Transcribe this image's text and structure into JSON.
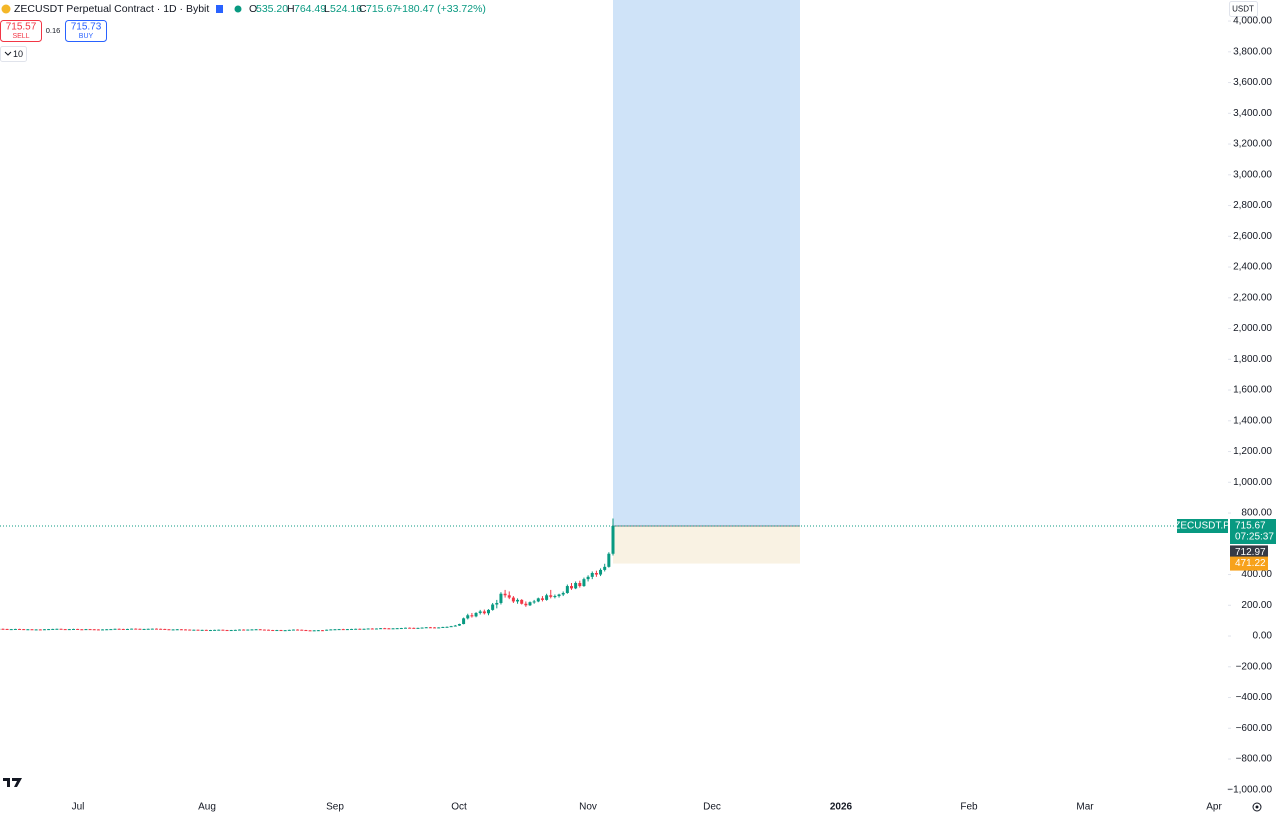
{
  "header": {
    "symbol": "ZECUSDT Perpetual Contract · 1D · Bybit",
    "o_label": "O",
    "o": "535.20",
    "h_label": "H",
    "h": "764.49",
    "l_label": "L",
    "l": "524.16",
    "c_label": "C",
    "c": "715.67",
    "change": "+180.47 (+33.72%)"
  },
  "trade": {
    "sell_price": "715.57",
    "sell": "SELL",
    "spread": "0.16",
    "buy_price": "715.73",
    "buy": "BUY"
  },
  "indicators": "10",
  "currency": "USDT",
  "chart_data": {
    "type": "candlestick",
    "ylim": [
      -1034,
      4137
    ],
    "yticks": [
      {
        "value": -1000,
        "label": "−1,000.00"
      },
      {
        "value": -800,
        "label": "−800.00"
      },
      {
        "value": -600,
        "label": "−600.00"
      },
      {
        "value": -400,
        "label": "−400.00"
      },
      {
        "value": -200,
        "label": "−200.00"
      },
      {
        "value": 0,
        "label": "0.00"
      },
      {
        "value": 200,
        "label": "200.00"
      },
      {
        "value": 400,
        "label": "400.00"
      },
      {
        "value": 800,
        "label": "800.00"
      },
      {
        "value": 1000,
        "label": "1,000.00"
      },
      {
        "value": 1200,
        "label": "1,200.00"
      },
      {
        "value": 1400,
        "label": "1,400.00"
      },
      {
        "value": 1600,
        "label": "1,600.00"
      },
      {
        "value": 1800,
        "label": "1,800.00"
      },
      {
        "value": 2000,
        "label": "2,000.00"
      },
      {
        "value": 2200,
        "label": "2,200.00"
      },
      {
        "value": 2400,
        "label": "2,400.00"
      },
      {
        "value": 2600,
        "label": "2,600.00"
      },
      {
        "value": 2800,
        "label": "2,800.00"
      },
      {
        "value": 3000,
        "label": "3,000.00"
      },
      {
        "value": 3200,
        "label": "3,200.00"
      },
      {
        "value": 3400,
        "label": "3,400.00"
      },
      {
        "value": 3600,
        "label": "3,600.00"
      },
      {
        "value": 3800,
        "label": "3,800.00"
      },
      {
        "value": 4000,
        "label": "4,000.00"
      }
    ],
    "xlabels": [
      "Jul",
      "Aug",
      "Sep",
      "Oct",
      "Nov",
      "Dec",
      "2026",
      "Feb",
      "Mar",
      "Apr"
    ],
    "up_color": "#089981",
    "down_color": "#f23645",
    "ohlc": [
      [
        46,
        48,
        45,
        47
      ],
      [
        47,
        49,
        45,
        46
      ],
      [
        46,
        47,
        43,
        44
      ],
      [
        44,
        46,
        43,
        45
      ],
      [
        45,
        47,
        44,
        46
      ],
      [
        46,
        47,
        44,
        45
      ],
      [
        45,
        46,
        42,
        43
      ],
      [
        43,
        45,
        42,
        44
      ],
      [
        44,
        45,
        41,
        42
      ],
      [
        42,
        44,
        40,
        43
      ],
      [
        43,
        44,
        40,
        41
      ],
      [
        41,
        45,
        40,
        44
      ],
      [
        44,
        46,
        43,
        45
      ],
      [
        45,
        47,
        44,
        46
      ],
      [
        46,
        48,
        45,
        47
      ],
      [
        47,
        48,
        44,
        45
      ],
      [
        45,
        46,
        43,
        44
      ],
      [
        44,
        46,
        43,
        45
      ],
      [
        45,
        47,
        44,
        46
      ],
      [
        46,
        47,
        43,
        44
      ],
      [
        44,
        45,
        42,
        43
      ],
      [
        43,
        46,
        42,
        45
      ],
      [
        45,
        46,
        43,
        44
      ],
      [
        44,
        45,
        42,
        43
      ],
      [
        43,
        44,
        41,
        42
      ],
      [
        42,
        44,
        41,
        43
      ],
      [
        43,
        45,
        42,
        44
      ],
      [
        44,
        46,
        43,
        45
      ],
      [
        45,
        48,
        44,
        47
      ],
      [
        47,
        49,
        45,
        46
      ],
      [
        46,
        47,
        44,
        45
      ],
      [
        45,
        47,
        44,
        46
      ],
      [
        46,
        49,
        45,
        48
      ],
      [
        48,
        50,
        46,
        47
      ],
      [
        47,
        48,
        44,
        45
      ],
      [
        45,
        47,
        44,
        46
      ],
      [
        46,
        48,
        45,
        47
      ],
      [
        47,
        49,
        46,
        48
      ],
      [
        48,
        50,
        46,
        47
      ],
      [
        47,
        48,
        45,
        46
      ],
      [
        46,
        47,
        43,
        44
      ],
      [
        44,
        45,
        41,
        42
      ],
      [
        42,
        44,
        41,
        43
      ],
      [
        43,
        45,
        42,
        44
      ],
      [
        44,
        45,
        42,
        43
      ],
      [
        43,
        44,
        41,
        42
      ],
      [
        42,
        43,
        39,
        40
      ],
      [
        40,
        42,
        39,
        41
      ],
      [
        41,
        42,
        38,
        39
      ],
      [
        39,
        41,
        37,
        40
      ],
      [
        40,
        41,
        37,
        38
      ],
      [
        38,
        40,
        37,
        39
      ],
      [
        39,
        41,
        38,
        40
      ],
      [
        40,
        42,
        39,
        41
      ],
      [
        41,
        42,
        38,
        39
      ],
      [
        39,
        40,
        37,
        38
      ],
      [
        38,
        40,
        37,
        39
      ],
      [
        39,
        41,
        38,
        40
      ],
      [
        40,
        43,
        39,
        42
      ],
      [
        42,
        44,
        40,
        41
      ],
      [
        41,
        43,
        40,
        42
      ],
      [
        42,
        44,
        41,
        43
      ],
      [
        43,
        45,
        42,
        44
      ],
      [
        44,
        45,
        41,
        42
      ],
      [
        42,
        43,
        40,
        41
      ],
      [
        41,
        42,
        38,
        39
      ],
      [
        39,
        40,
        37,
        38
      ],
      [
        38,
        40,
        37,
        39
      ],
      [
        39,
        40,
        36,
        37
      ],
      [
        37,
        39,
        36,
        38
      ],
      [
        38,
        41,
        37,
        40
      ],
      [
        40,
        43,
        39,
        42
      ],
      [
        42,
        44,
        40,
        41
      ],
      [
        41,
        42,
        38,
        39
      ],
      [
        39,
        40,
        36,
        37
      ],
      [
        37,
        38,
        35,
        36
      ],
      [
        36,
        38,
        35,
        37
      ],
      [
        37,
        39,
        36,
        38
      ],
      [
        38,
        39,
        35,
        36
      ],
      [
        36,
        42,
        35,
        41
      ],
      [
        41,
        44,
        40,
        43
      ],
      [
        43,
        45,
        42,
        44
      ],
      [
        44,
        46,
        43,
        45
      ],
      [
        45,
        47,
        43,
        44
      ],
      [
        44,
        46,
        43,
        45
      ],
      [
        45,
        47,
        44,
        46
      ],
      [
        46,
        48,
        45,
        47
      ],
      [
        47,
        49,
        45,
        46
      ],
      [
        46,
        48,
        45,
        47
      ],
      [
        47,
        50,
        46,
        49
      ],
      [
        49,
        51,
        47,
        48
      ],
      [
        48,
        50,
        47,
        49
      ],
      [
        49,
        52,
        48,
        51
      ],
      [
        51,
        53,
        49,
        50
      ],
      [
        50,
        52,
        48,
        49
      ],
      [
        49,
        51,
        48,
        50
      ],
      [
        50,
        52,
        49,
        51
      ],
      [
        51,
        53,
        50,
        52
      ],
      [
        52,
        55,
        51,
        54
      ],
      [
        54,
        56,
        52,
        53
      ],
      [
        53,
        55,
        51,
        52
      ],
      [
        52,
        54,
        51,
        53
      ],
      [
        53,
        56,
        52,
        55
      ],
      [
        55,
        58,
        54,
        57
      ],
      [
        57,
        59,
        55,
        56
      ],
      [
        56,
        58,
        54,
        55
      ],
      [
        55,
        57,
        54,
        56
      ],
      [
        56,
        60,
        55,
        59
      ],
      [
        59,
        62,
        57,
        60
      ],
      [
        60,
        66,
        59,
        64
      ],
      [
        64,
        72,
        62,
        68
      ],
      [
        68,
        80,
        66,
        78
      ],
      [
        78,
        120,
        76,
        115
      ],
      [
        115,
        145,
        108,
        135
      ],
      [
        135,
        150,
        120,
        128
      ],
      [
        128,
        155,
        122,
        150
      ],
      [
        150,
        170,
        140,
        160
      ],
      [
        160,
        172,
        140,
        148
      ],
      [
        148,
        175,
        135,
        170
      ],
      [
        170,
        215,
        165,
        205
      ],
      [
        205,
        235,
        180,
        215
      ],
      [
        215,
        285,
        205,
        275
      ],
      [
        275,
        300,
        250,
        265
      ],
      [
        265,
        290,
        240,
        250
      ],
      [
        250,
        260,
        215,
        225
      ],
      [
        225,
        245,
        210,
        235
      ],
      [
        235,
        240,
        205,
        210
      ],
      [
        210,
        225,
        190,
        200
      ],
      [
        200,
        225,
        195,
        220
      ],
      [
        220,
        235,
        210,
        225
      ],
      [
        225,
        250,
        220,
        245
      ],
      [
        245,
        260,
        225,
        235
      ],
      [
        235,
        275,
        230,
        265
      ],
      [
        265,
        300,
        245,
        255
      ],
      [
        255,
        270,
        245,
        260
      ],
      [
        260,
        275,
        250,
        270
      ],
      [
        270,
        290,
        260,
        280
      ],
      [
        280,
        335,
        275,
        325
      ],
      [
        325,
        345,
        300,
        310
      ],
      [
        310,
        355,
        305,
        345
      ],
      [
        345,
        360,
        315,
        325
      ],
      [
        325,
        380,
        320,
        370
      ],
      [
        370,
        395,
        355,
        385
      ],
      [
        385,
        420,
        370,
        410
      ],
      [
        410,
        425,
        385,
        400
      ],
      [
        400,
        440,
        390,
        430
      ],
      [
        430,
        470,
        420,
        450
      ],
      [
        450,
        545,
        445,
        535.2
      ],
      [
        535.2,
        764.49,
        524.16,
        715.67
      ]
    ],
    "symbol_tag": "ZECUSDT.P",
    "last_price": 715.67,
    "countdown": "07:25:37",
    "mark_price": 712.97,
    "stop_price": 471.22,
    "position_color": "#cfe3f8",
    "stop_color": "#f9f2e3"
  }
}
